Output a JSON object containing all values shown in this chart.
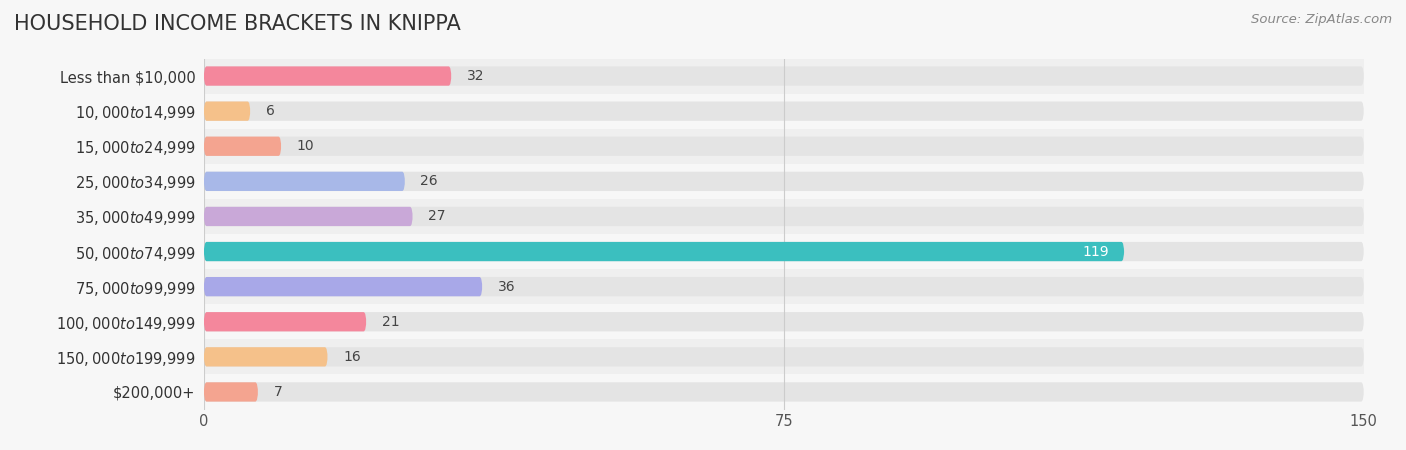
{
  "title": "HOUSEHOLD INCOME BRACKETS IN KNIPPA",
  "source": "Source: ZipAtlas.com",
  "categories": [
    "Less than $10,000",
    "$10,000 to $14,999",
    "$15,000 to $24,999",
    "$25,000 to $34,999",
    "$35,000 to $49,999",
    "$50,000 to $74,999",
    "$75,000 to $99,999",
    "$100,000 to $149,999",
    "$150,000 to $199,999",
    "$200,000+"
  ],
  "values": [
    32,
    6,
    10,
    26,
    27,
    119,
    36,
    21,
    16,
    7
  ],
  "bar_colors": [
    "#f4879c",
    "#f5c18a",
    "#f4a490",
    "#a8b8e8",
    "#c9a8d8",
    "#3bbfbf",
    "#a8a8e8",
    "#f4879c",
    "#f5c18a",
    "#f4a490"
  ],
  "bg_color": "#f7f7f7",
  "bar_bg_color": "#e4e4e4",
  "row_bg_even": "#efefef",
  "row_bg_odd": "#f7f7f7",
  "xlim": [
    0,
    150
  ],
  "xticks": [
    0,
    75,
    150
  ],
  "bar_height": 0.55,
  "title_fontsize": 15,
  "label_fontsize": 10.5,
  "value_fontsize": 10,
  "source_fontsize": 9.5,
  "tick_label_color": "#555555",
  "value_color_default": "#444444",
  "value_color_inside": "#ffffff",
  "grid_color": "#cccccc"
}
